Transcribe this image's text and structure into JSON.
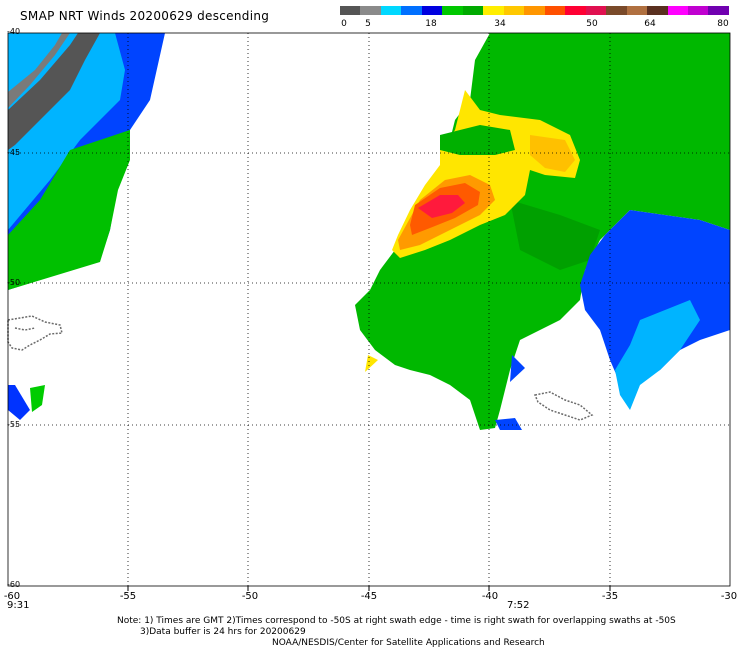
{
  "header": {
    "title": "SMAP NRT Winds  20200629 descending"
  },
  "colorbar": {
    "labels": [
      "0",
      "5",
      "18",
      "34",
      "50",
      "64",
      "80"
    ],
    "colors": [
      "#555555",
      "#8a8a8a",
      "#00d8ff",
      "#0070ff",
      "#0000e0",
      "#00c800",
      "#00aa00",
      "#ffee00",
      "#ffc800",
      "#ff9600",
      "#ff5000",
      "#ff0033",
      "#e01050",
      "#7a4a2a",
      "#b07040",
      "#5a3020",
      "#ff00ff",
      "#c000d0",
      "#7000b0"
    ]
  },
  "axes": {
    "x_ticks": [
      "-60",
      "-55",
      "-50",
      "-45",
      "-40",
      "-35",
      "-30"
    ],
    "y_ticks": [
      "-40",
      "-45",
      "-50",
      "-55",
      "-60"
    ],
    "start_time": "9:31",
    "end_time": "7:52"
  },
  "map_data": {
    "lon_range": [
      -60,
      -30
    ],
    "lat_range": [
      -60,
      -40
    ],
    "grid": "dotted every 5 degrees",
    "wind_color_legend": {
      "dark_gray": "0-5",
      "blue": "5-18",
      "green": "18-34",
      "yellow_orange": "34-50",
      "red": "~50"
    }
  },
  "footer": {
    "note_line1": "Note: 1) Times are GMT 2)Times correspond to -50S at right swath edge - time is right swath for overlapping swaths at -50S",
    "note_line2": "3)Data buffer is 24 hrs for 20200629",
    "note_line3": "NOAA/NESDIS/Center for Satellite Applications and Research"
  }
}
